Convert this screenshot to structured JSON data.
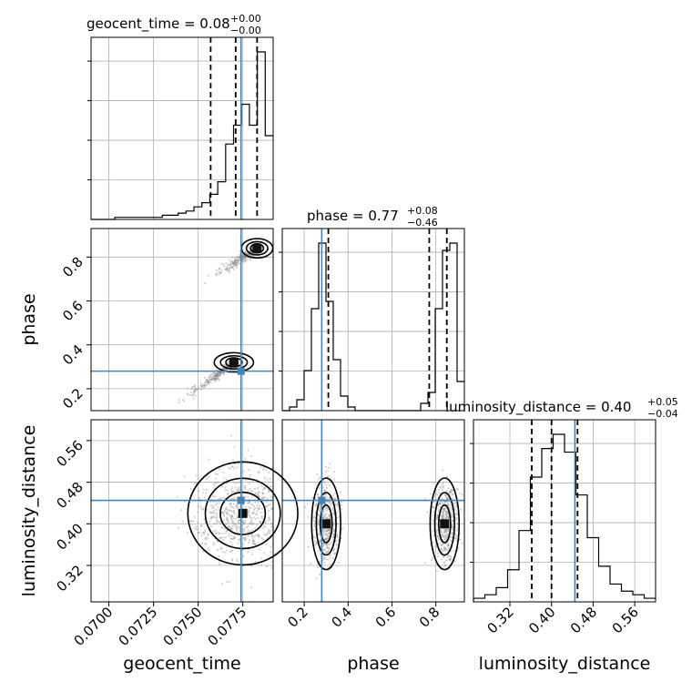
{
  "chart_data": {
    "type": "corner",
    "parameters": [
      "geocent_time",
      "phase",
      "luminosity_distance"
    ],
    "axis_labels": [
      "geocent_time",
      "phase",
      "luminosity_distance"
    ],
    "truth": {
      "geocent_time": 0.0774,
      "phase": 0.28,
      "luminosity_distance": 0.445
    },
    "titles": [
      {
        "name": "geocent_time",
        "median": "0.08",
        "plus": "+0.00",
        "minus": "−0.00"
      },
      {
        "name": "phase",
        "median": "0.77",
        "plus": "+0.08",
        "minus": "−0.46"
      },
      {
        "name": "luminosity_distance",
        "median": "0.40",
        "plus": "+0.05",
        "minus": "−0.04"
      }
    ],
    "ranges": {
      "geocent_time": [
        0.069,
        0.0792
      ],
      "phase": [
        0.1,
        0.93
      ],
      "luminosity_distance": [
        0.25,
        0.6
      ]
    },
    "ticks": {
      "geocent_time": [
        "0.0700",
        "0.0725",
        "0.0750",
        "0.0775"
      ],
      "phase": [
        "0.2",
        "0.4",
        "0.6",
        "0.8"
      ],
      "luminosity_distance": [
        "0.32",
        "0.40",
        "0.48",
        "0.56"
      ]
    },
    "quantile_lines": {
      "geocent_time": [
        0.0757,
        0.0771,
        0.0783
      ],
      "phase": [
        0.31,
        0.77,
        0.85
      ],
      "luminosity_distance": [
        0.362,
        0.4,
        0.45
      ]
    },
    "histograms": {
      "geocent_time": {
        "edges_start": 0.069,
        "edges_end": 0.0792,
        "counts": [
          0,
          0,
          0,
          1,
          1,
          1,
          1,
          1,
          1,
          2,
          2,
          3,
          4,
          6,
          8,
          12,
          18,
          36,
          45,
          55,
          45,
          80,
          40
        ]
      },
      "phase": {
        "edges_start": 0.1,
        "edges_end": 0.93,
        "counts": [
          0,
          1,
          3,
          11,
          28,
          46,
          30,
          14,
          4,
          1,
          0,
          0,
          0,
          0,
          0,
          0,
          0,
          0,
          0,
          2,
          5,
          28,
          44,
          46,
          8
        ]
      },
      "luminosity_distance": {
        "edges_start": 0.25,
        "edges_end": 0.6,
        "counts": [
          1,
          2,
          4,
          9,
          20,
          35,
          43,
          47,
          42,
          30,
          18,
          10,
          5,
          3,
          2,
          1
        ]
      }
    },
    "scatter_clusters": [
      {
        "x": "geocent_time",
        "y": "phase",
        "cx": 0.077,
        "cy": 0.32,
        "sx": 0.0005,
        "sy": 0.02,
        "slope": 60,
        "n": 260
      },
      {
        "x": "geocent_time",
        "y": "phase",
        "cx": 0.0783,
        "cy": 0.84,
        "sx": 0.0004,
        "sy": 0.02,
        "slope": 50,
        "n": 260
      },
      {
        "x": "geocent_time",
        "y": "luminosity_distance",
        "cx": 0.0775,
        "cy": 0.42,
        "sx": 0.0014,
        "sy": 0.045,
        "slope": 0,
        "n": 700
      },
      {
        "x": "phase",
        "y": "luminosity_distance",
        "cx": 0.3,
        "cy": 0.4,
        "sx": 0.03,
        "sy": 0.04,
        "slope": 0,
        "n": 450
      },
      {
        "x": "phase",
        "y": "luminosity_distance",
        "cx": 0.84,
        "cy": 0.4,
        "sx": 0.03,
        "sy": 0.04,
        "slope": 0,
        "n": 450
      }
    ],
    "grid": true,
    "colors": {
      "truth": "#4682b4",
      "hist": "#000000",
      "quantile": "#000000",
      "points": "#808080"
    }
  }
}
